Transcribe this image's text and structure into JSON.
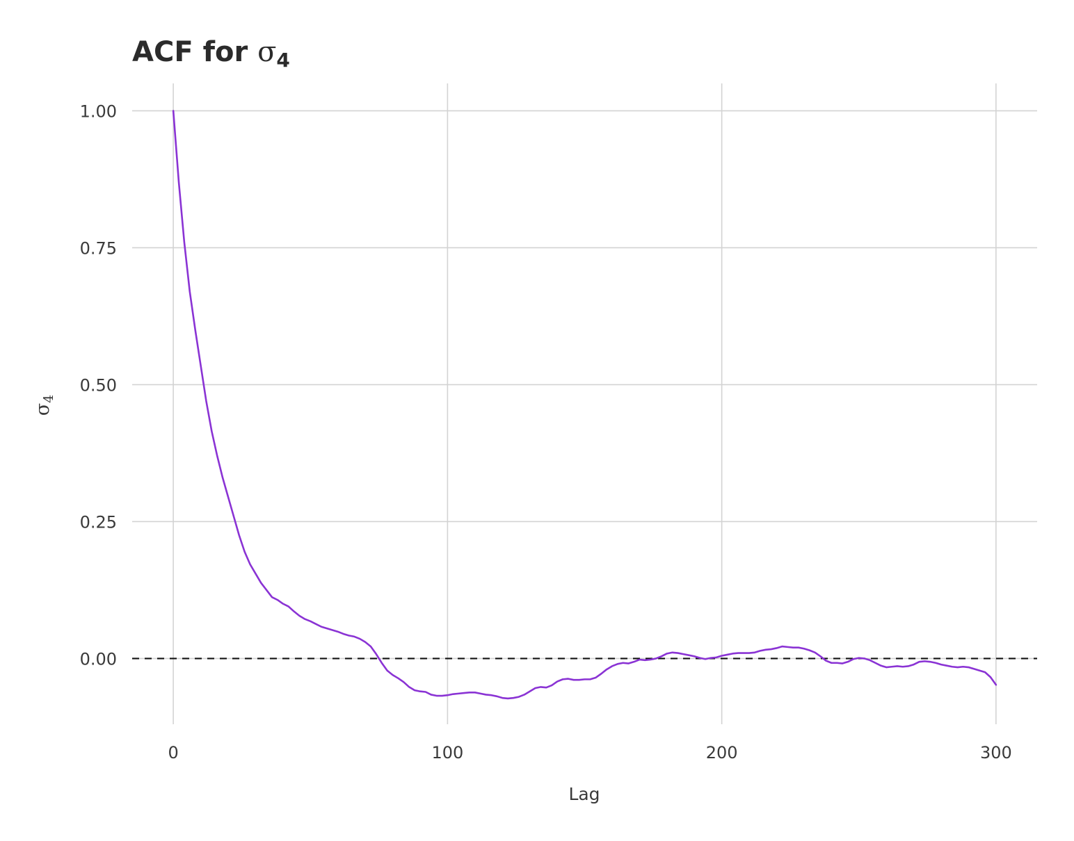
{
  "chart_data": {
    "type": "line",
    "title": {
      "prefix": "ACF for ",
      "symbol": "σ",
      "subscript": "4"
    },
    "xlabel": "Lag",
    "ylabel": {
      "symbol": "σ",
      "subscript": "4"
    },
    "xlim": [
      -15,
      315
    ],
    "ylim": [
      -0.12,
      1.05
    ],
    "xticks": [
      {
        "value": 0,
        "label": "0"
      },
      {
        "value": 100,
        "label": "100"
      },
      {
        "value": 200,
        "label": "200"
      },
      {
        "value": 300,
        "label": "300"
      }
    ],
    "yticks": [
      {
        "value": 0,
        "label": "0.00"
      },
      {
        "value": 0.25,
        "label": "0.25"
      },
      {
        "value": 0.5,
        "label": "0.50"
      },
      {
        "value": 0.75,
        "label": "0.75"
      },
      {
        "value": 1.0,
        "label": "1.00"
      }
    ],
    "grid": true,
    "reference_line": {
      "y": 0,
      "style": "dashed",
      "color": "#111111"
    },
    "series": [
      {
        "color": "#8a33d4",
        "points": [
          [
            0,
            1.0
          ],
          [
            2,
            0.87
          ],
          [
            4,
            0.76
          ],
          [
            6,
            0.67
          ],
          [
            8,
            0.6
          ],
          [
            10,
            0.535
          ],
          [
            12,
            0.47
          ],
          [
            14,
            0.415
          ],
          [
            16,
            0.37
          ],
          [
            18,
            0.33
          ],
          [
            20,
            0.295
          ],
          [
            22,
            0.26
          ],
          [
            24,
            0.225
          ],
          [
            26,
            0.195
          ],
          [
            28,
            0.172
          ],
          [
            30,
            0.155
          ],
          [
            32,
            0.138
          ],
          [
            34,
            0.125
          ],
          [
            36,
            0.112
          ],
          [
            38,
            0.107
          ],
          [
            40,
            0.1
          ],
          [
            42,
            0.095
          ],
          [
            44,
            0.086
          ],
          [
            46,
            0.078
          ],
          [
            48,
            0.072
          ],
          [
            50,
            0.068
          ],
          [
            52,
            0.063
          ],
          [
            54,
            0.058
          ],
          [
            56,
            0.055
          ],
          [
            58,
            0.052
          ],
          [
            60,
            0.049
          ],
          [
            62,
            0.045
          ],
          [
            64,
            0.042
          ],
          [
            66,
            0.04
          ],
          [
            68,
            0.036
          ],
          [
            70,
            0.03
          ],
          [
            72,
            0.022
          ],
          [
            74,
            0.008
          ],
          [
            76,
            -0.008
          ],
          [
            78,
            -0.022
          ],
          [
            80,
            -0.03
          ],
          [
            82,
            -0.036
          ],
          [
            84,
            -0.043
          ],
          [
            86,
            -0.052
          ],
          [
            88,
            -0.058
          ],
          [
            90,
            -0.06
          ],
          [
            92,
            -0.061
          ],
          [
            94,
            -0.066
          ],
          [
            96,
            -0.068
          ],
          [
            98,
            -0.068
          ],
          [
            100,
            -0.067
          ],
          [
            102,
            -0.065
          ],
          [
            104,
            -0.064
          ],
          [
            106,
            -0.063
          ],
          [
            108,
            -0.062
          ],
          [
            110,
            -0.062
          ],
          [
            112,
            -0.064
          ],
          [
            114,
            -0.066
          ],
          [
            116,
            -0.067
          ],
          [
            118,
            -0.069
          ],
          [
            120,
            -0.072
          ],
          [
            122,
            -0.073
          ],
          [
            124,
            -0.072
          ],
          [
            126,
            -0.07
          ],
          [
            128,
            -0.066
          ],
          [
            130,
            -0.06
          ],
          [
            132,
            -0.054
          ],
          [
            134,
            -0.052
          ],
          [
            136,
            -0.053
          ],
          [
            138,
            -0.049
          ],
          [
            140,
            -0.042
          ],
          [
            142,
            -0.038
          ],
          [
            144,
            -0.037
          ],
          [
            146,
            -0.039
          ],
          [
            148,
            -0.039
          ],
          [
            150,
            -0.038
          ],
          [
            152,
            -0.038
          ],
          [
            154,
            -0.035
          ],
          [
            156,
            -0.028
          ],
          [
            158,
            -0.02
          ],
          [
            160,
            -0.014
          ],
          [
            162,
            -0.01
          ],
          [
            164,
            -0.008
          ],
          [
            166,
            -0.009
          ],
          [
            168,
            -0.006
          ],
          [
            170,
            -0.002
          ],
          [
            172,
            -0.003
          ],
          [
            174,
            -0.002
          ],
          [
            176,
            0.0
          ],
          [
            178,
            0.004
          ],
          [
            180,
            0.009
          ],
          [
            182,
            0.011
          ],
          [
            184,
            0.01
          ],
          [
            186,
            0.008
          ],
          [
            188,
            0.006
          ],
          [
            190,
            0.004
          ],
          [
            192,
            0.001
          ],
          [
            194,
            -0.001
          ],
          [
            196,
            0.001
          ],
          [
            198,
            0.002
          ],
          [
            200,
            0.005
          ],
          [
            202,
            0.007
          ],
          [
            204,
            0.009
          ],
          [
            206,
            0.01
          ],
          [
            208,
            0.01
          ],
          [
            210,
            0.01
          ],
          [
            212,
            0.011
          ],
          [
            214,
            0.014
          ],
          [
            216,
            0.016
          ],
          [
            218,
            0.017
          ],
          [
            220,
            0.019
          ],
          [
            222,
            0.022
          ],
          [
            224,
            0.021
          ],
          [
            226,
            0.02
          ],
          [
            228,
            0.02
          ],
          [
            230,
            0.018
          ],
          [
            232,
            0.015
          ],
          [
            234,
            0.011
          ],
          [
            236,
            0.004
          ],
          [
            238,
            -0.004
          ],
          [
            240,
            -0.008
          ],
          [
            242,
            -0.008
          ],
          [
            244,
            -0.009
          ],
          [
            246,
            -0.006
          ],
          [
            248,
            -0.001
          ],
          [
            250,
            0.001
          ],
          [
            252,
            0.0
          ],
          [
            254,
            -0.003
          ],
          [
            256,
            -0.008
          ],
          [
            258,
            -0.013
          ],
          [
            260,
            -0.016
          ],
          [
            262,
            -0.015
          ],
          [
            264,
            -0.014
          ],
          [
            266,
            -0.015
          ],
          [
            268,
            -0.014
          ],
          [
            270,
            -0.011
          ],
          [
            272,
            -0.006
          ],
          [
            274,
            -0.005
          ],
          [
            276,
            -0.006
          ],
          [
            278,
            -0.008
          ],
          [
            280,
            -0.011
          ],
          [
            282,
            -0.013
          ],
          [
            284,
            -0.015
          ],
          [
            286,
            -0.016
          ],
          [
            288,
            -0.015
          ],
          [
            290,
            -0.016
          ],
          [
            292,
            -0.019
          ],
          [
            294,
            -0.022
          ],
          [
            296,
            -0.025
          ],
          [
            298,
            -0.034
          ],
          [
            300,
            -0.048
          ]
        ]
      }
    ]
  }
}
